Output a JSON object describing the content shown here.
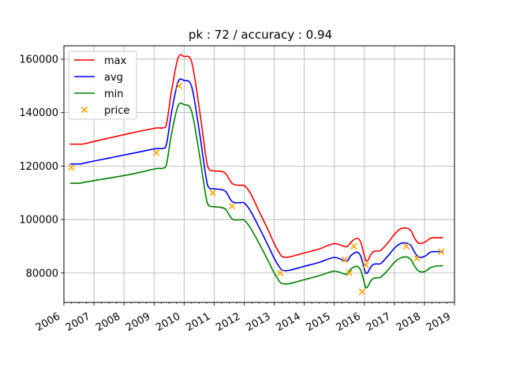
{
  "chart_data": {
    "type": "line",
    "title": "pk : 72 / accuracy : 0.94",
    "xlabel": "",
    "ylabel": "",
    "xlim": [
      2006.0,
      2019.0
    ],
    "ylim": [
      69000,
      165000
    ],
    "grid": true,
    "legend_position": "top-left",
    "x_ticks": [
      2006,
      2007,
      2008,
      2009,
      2010,
      2011,
      2012,
      2013,
      2014,
      2015,
      2016,
      2017,
      2018,
      2019
    ],
    "x_tick_labels": [
      "2006",
      "2007",
      "2008",
      "2009",
      "2010",
      "2011",
      "2012",
      "2013",
      "2014",
      "2015",
      "2016",
      "2017",
      "2018",
      "2019"
    ],
    "y_ticks": [
      80000,
      100000,
      120000,
      140000,
      160000
    ],
    "y_tick_labels": [
      "80000",
      "100000",
      "120000",
      "140000",
      "160000"
    ],
    "series": [
      {
        "name": "max",
        "color": "#ff0000",
        "x": [
          2006.2,
          2006.55,
          2006.7,
          2007.5,
          2008.3,
          2009.05,
          2009.3,
          2009.42,
          2009.58,
          2009.8,
          2010.0,
          2010.25,
          2010.5,
          2010.72,
          2010.82,
          2011.0,
          2011.25,
          2011.4,
          2011.6,
          2011.85,
          2012.0,
          2012.2,
          2012.5,
          2012.8,
          2013.0,
          2013.2,
          2013.3,
          2013.5,
          2014.0,
          2014.5,
          2015.0,
          2015.4,
          2015.55,
          2015.75,
          2015.88,
          2016.0,
          2016.05,
          2016.12,
          2016.2,
          2016.3,
          2016.4,
          2016.55,
          2016.8,
          2017.0,
          2017.2,
          2017.4,
          2017.55,
          2017.65,
          2017.8,
          2018.0,
          2018.2,
          2018.35,
          2018.5,
          2018.62
        ],
        "values": [
          128200,
          128200,
          128400,
          130500,
          132500,
          134200,
          134300,
          136000,
          148000,
          160500,
          161000,
          159000,
          142000,
          124000,
          119000,
          118200,
          118000,
          117000,
          113500,
          112800,
          112700,
          110000,
          103000,
          96000,
          91000,
          87000,
          86000,
          86000,
          87500,
          89000,
          91000,
          89800,
          91500,
          93000,
          91500,
          86500,
          84500,
          84800,
          86500,
          88000,
          88200,
          88500,
          91500,
          94500,
          96500,
          96800,
          95800,
          93500,
          91200,
          91500,
          93000,
          93200,
          93200,
          93200
        ]
      },
      {
        "name": "avg",
        "color": "#0000ff",
        "x": [
          2006.2,
          2006.55,
          2006.7,
          2007.5,
          2008.3,
          2009.05,
          2009.3,
          2009.42,
          2009.58,
          2009.8,
          2010.0,
          2010.25,
          2010.5,
          2010.72,
          2010.82,
          2011.0,
          2011.25,
          2011.4,
          2011.6,
          2011.85,
          2012.0,
          2012.2,
          2012.5,
          2012.8,
          2013.0,
          2013.2,
          2013.3,
          2013.5,
          2014.0,
          2014.5,
          2015.0,
          2015.4,
          2015.55,
          2015.75,
          2015.88,
          2016.0,
          2016.05,
          2016.12,
          2016.2,
          2016.3,
          2016.4,
          2016.55,
          2016.8,
          2017.0,
          2017.2,
          2017.4,
          2017.55,
          2017.65,
          2017.8,
          2018.0,
          2018.2,
          2018.35,
          2018.5,
          2018.62
        ],
        "values": [
          120800,
          120800,
          121200,
          123000,
          124800,
          126500,
          126600,
          128500,
          140000,
          151500,
          152000,
          149800,
          133500,
          116500,
          112000,
          111500,
          111200,
          110300,
          106700,
          106300,
          106200,
          103400,
          97000,
          90200,
          85500,
          81800,
          81000,
          81000,
          82500,
          84000,
          85800,
          84500,
          86500,
          87800,
          86300,
          81400,
          79900,
          80300,
          82000,
          83200,
          83400,
          83600,
          86600,
          89300,
          91000,
          91200,
          90300,
          88200,
          86000,
          86200,
          87800,
          88000,
          88000,
          88000
        ]
      },
      {
        "name": "min",
        "color": "#008000",
        "x": [
          2006.2,
          2006.55,
          2006.7,
          2007.5,
          2008.3,
          2009.05,
          2009.3,
          2009.42,
          2009.58,
          2009.8,
          2010.0,
          2010.25,
          2010.5,
          2010.72,
          2010.82,
          2011.0,
          2011.25,
          2011.4,
          2011.6,
          2011.85,
          2012.0,
          2012.2,
          2012.5,
          2012.8,
          2013.0,
          2013.2,
          2013.3,
          2013.5,
          2014.0,
          2014.5,
          2015.0,
          2015.4,
          2015.55,
          2015.75,
          2015.88,
          2016.0,
          2016.05,
          2016.12,
          2016.2,
          2016.3,
          2016.4,
          2016.55,
          2016.8,
          2017.0,
          2017.2,
          2017.4,
          2017.55,
          2017.65,
          2017.8,
          2018.0,
          2018.2,
          2018.35,
          2018.5,
          2018.62
        ],
        "values": [
          113600,
          113600,
          114000,
          115500,
          117100,
          119000,
          119200,
          121000,
          132000,
          142500,
          143000,
          140500,
          125000,
          109000,
          105300,
          104800,
          104500,
          103600,
          100200,
          99900,
          99800,
          97000,
          91000,
          84500,
          80000,
          76500,
          76000,
          76000,
          77500,
          79000,
          80700,
          79500,
          81500,
          82500,
          81000,
          76300,
          74500,
          75000,
          76800,
          78000,
          78200,
          78500,
          81300,
          84000,
          85600,
          86000,
          85000,
          83000,
          80800,
          80500,
          82000,
          82500,
          82700,
          82700
        ]
      }
    ],
    "scatter": {
      "name": "price",
      "color": "#ffa500",
      "x": [
        2006.25,
        2009.08,
        2009.83,
        2010.95,
        2011.6,
        2013.2,
        2015.35,
        2015.5,
        2015.65,
        2015.92,
        2016.05,
        2017.4,
        2017.75,
        2018.55
      ],
      "values": [
        119500,
        125000,
        150000,
        110000,
        105000,
        80000,
        85000,
        80000,
        90000,
        73000,
        83000,
        90000,
        85500,
        88000
      ]
    }
  }
}
